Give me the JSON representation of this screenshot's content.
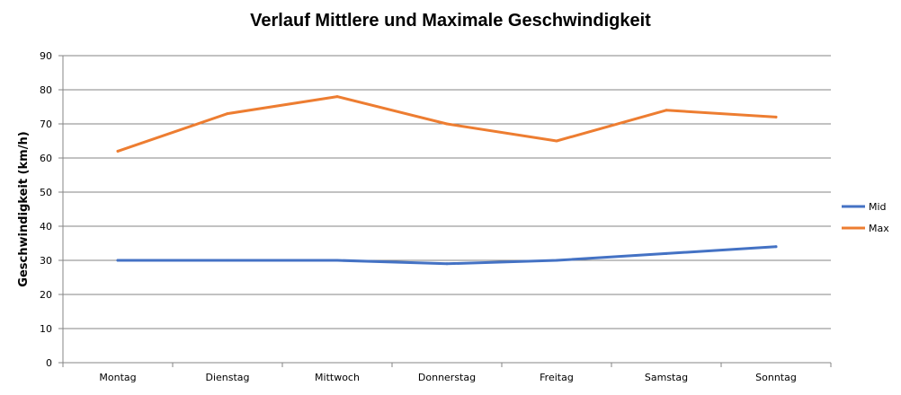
{
  "chart_data": {
    "type": "line",
    "title": "Verlauf  Mittlere und Maximale Geschwindigkeit",
    "ylabel": "Geschwindigkeit (km/h)",
    "xlabel": "",
    "categories": [
      "Montag",
      "Dienstag",
      "Mittwoch",
      "Donnerstag",
      "Freitag",
      "Samstag",
      "Sonntag"
    ],
    "ylim": [
      0,
      90
    ],
    "yticks": [
      "0",
      "10",
      "20",
      "30",
      "40",
      "50",
      "60",
      "70",
      "80",
      "90"
    ],
    "grid": true,
    "legend_position": "right",
    "series": [
      {
        "name": "Mid",
        "color": "#4472c4",
        "values": [
          30,
          30,
          30,
          29,
          30,
          32,
          34
        ]
      },
      {
        "name": "Max",
        "color": "#ed7d31",
        "values": [
          62,
          73,
          78,
          70,
          65,
          74,
          72
        ]
      }
    ]
  }
}
